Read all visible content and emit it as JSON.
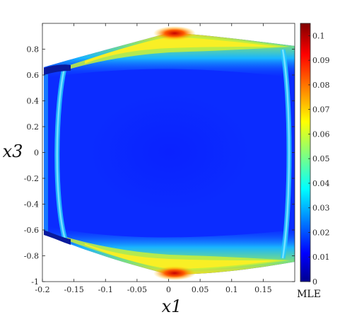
{
  "chart_data": {
    "type": "heatmap",
    "title": "",
    "xlabel": "x1",
    "ylabel": "x3",
    "xlim": [
      -0.2,
      0.2
    ],
    "ylim": [
      -1,
      1
    ],
    "x_ticks": [
      "-0.2",
      "-0.15",
      "-0.1",
      "-0.05",
      "0",
      "0.05",
      "0.1",
      "0.15"
    ],
    "y_ticks": [
      "-1",
      "-0.8",
      "-0.6",
      "-0.4",
      "-0.2",
      "0",
      "0.2",
      "0.4",
      "0.6",
      "0.8"
    ],
    "colorbar": {
      "label": "MLE",
      "colormap": "jet",
      "range": [
        0,
        0.105
      ],
      "ticks": [
        "0",
        "0.01",
        "0.02",
        "0.03",
        "0.04",
        "0.05",
        "0.06",
        "0.07",
        "0.08",
        "0.09",
        "0.1"
      ]
    },
    "features": {
      "background_MLE": 0.0,
      "edge_band_MLE": 0.025,
      "peak_MLE_top_near_x1_0.02": 0.1,
      "peak_MLE_bottom_near_x1_0.02": 0.1
    },
    "grid": false
  }
}
